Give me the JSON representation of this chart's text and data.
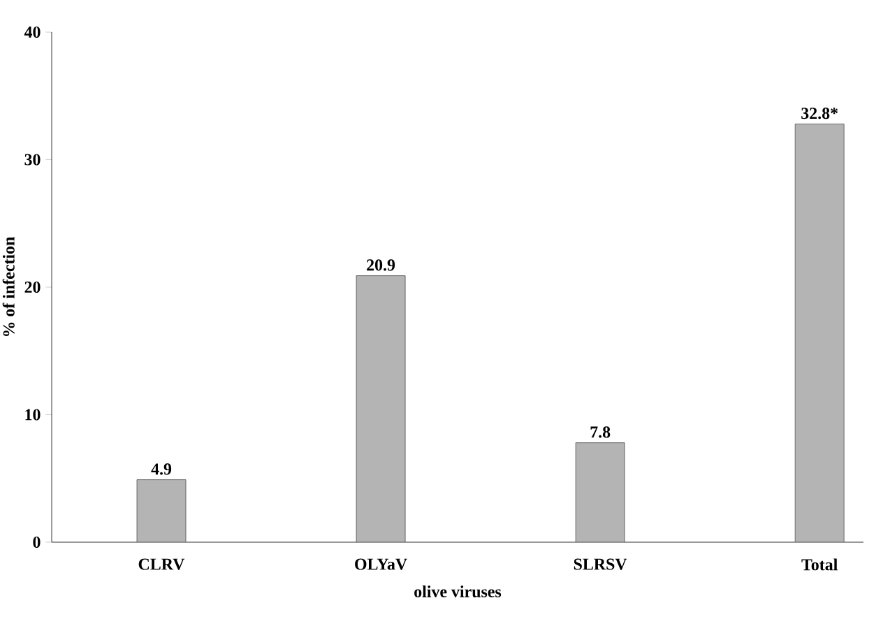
{
  "chart_data": {
    "type": "bar",
    "xlabel": "olive viruses",
    "ylabel": "% of infection",
    "categories": [
      "CLRV",
      "OLYaV",
      "SLRSV",
      "Total"
    ],
    "values": [
      4.9,
      20.9,
      7.8,
      32.8
    ],
    "value_labels": [
      "4.9",
      "20.9",
      "7.8",
      "32.8*"
    ],
    "color": "#b4b4b4",
    "ylim": [
      0,
      40
    ],
    "yticks": [
      0,
      10,
      20,
      30,
      40
    ]
  }
}
